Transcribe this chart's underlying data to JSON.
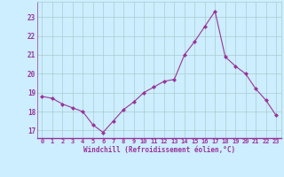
{
  "x": [
    0,
    1,
    2,
    3,
    4,
    5,
    6,
    7,
    8,
    9,
    10,
    11,
    12,
    13,
    14,
    15,
    16,
    17,
    18,
    19,
    20,
    21,
    22,
    23
  ],
  "y": [
    18.8,
    18.7,
    18.4,
    18.2,
    18.0,
    17.3,
    16.9,
    17.5,
    18.1,
    18.5,
    19.0,
    19.3,
    19.6,
    19.7,
    21.0,
    21.7,
    22.5,
    23.3,
    20.9,
    20.4,
    20.0,
    19.2,
    18.6,
    17.8
  ],
  "x_labels": [
    "0",
    "1",
    "2",
    "3",
    "4",
    "5",
    "6",
    "7",
    "8",
    "9",
    "10",
    "11",
    "12",
    "13",
    "14",
    "15",
    "16",
    "17",
    "18",
    "19",
    "20",
    "21",
    "22",
    "23"
  ],
  "y_ticks": [
    17,
    18,
    19,
    20,
    21,
    22,
    23
  ],
  "ylim": [
    16.6,
    23.8
  ],
  "xlim": [
    -0.5,
    23.5
  ],
  "line_color": "#993399",
  "marker_color": "#993399",
  "bg_color": "#cceeff",
  "grid_color": "#aacccc",
  "xlabel": "Windchill (Refroidissement éolien,°C)",
  "xlabel_color": "#993399",
  "tick_color": "#993399"
}
